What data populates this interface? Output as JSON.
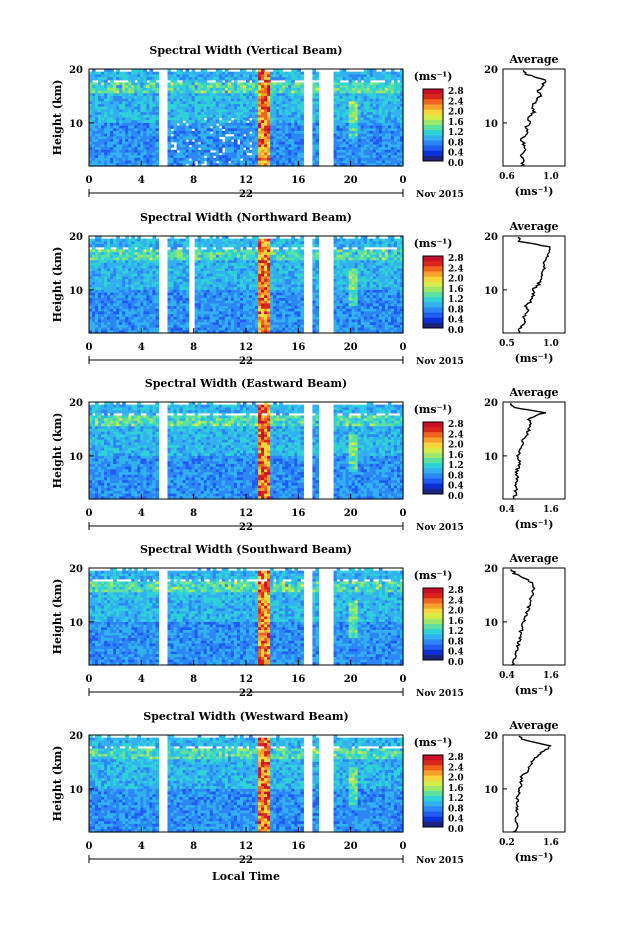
{
  "colors": {
    "scale": [
      "#1a237e",
      "#0d2fd6",
      "#1f5cf2",
      "#2d86f5",
      "#32b0ef",
      "#2fd2d6",
      "#5ee0a0",
      "#9be86a",
      "#d6ec4a",
      "#f6d63a",
      "#f7a12c",
      "#f0641f",
      "#d9261c",
      "#c8102a"
    ],
    "no_data": "#ffffff",
    "line": "#000000"
  },
  "shared": {
    "x_ticks": [
      "0",
      "4",
      "8",
      "12",
      "16",
      "20",
      "0"
    ],
    "date_label": "22",
    "month_label": "Nov 2015",
    "unit_label": "(ms⁻¹)",
    "ylabel": "Height (km)",
    "y_ticks": [
      "20",
      "10"
    ],
    "colorbar_ticks": [
      "2.8",
      "2.4",
      "2.0",
      "1.6",
      "1.2",
      "0.8",
      "0.4",
      "0.0"
    ],
    "avg_title": "Average",
    "avg_xlabel": "(ms⁻¹)",
    "xlabel": "Local Time"
  },
  "chart_data": [
    {
      "type": "heatmap",
      "title": "Spectral Width (Vertical Beam)",
      "xlabel": "",
      "ylabel": "Height (km)",
      "xlim": [
        0,
        24
      ],
      "ylim": [
        2,
        20
      ],
      "color_range": [
        0.0,
        2.8
      ],
      "no_data_hours": [
        [
          5.4,
          6.0
        ],
        [
          16.4,
          17.0
        ],
        [
          17.6,
          18.8
        ]
      ],
      "enhanced_band_hours": [
        13.0,
        13.9
      ],
      "average_profile": {
        "xlim": [
          0.6,
          1.2
        ],
        "xticks": [
          "0.6",
          "1.0"
        ],
        "height_km": [
          2,
          3,
          4,
          5,
          6,
          7,
          8,
          9,
          10,
          11,
          12,
          13,
          14,
          15,
          16,
          17,
          18,
          19,
          20
        ],
        "width": [
          0.78,
          0.8,
          0.76,
          0.82,
          0.8,
          0.78,
          0.84,
          0.82,
          0.86,
          0.84,
          0.9,
          0.88,
          0.92,
          0.96,
          0.94,
          0.98,
          1.02,
          0.82,
          0.8
        ]
      }
    },
    {
      "type": "heatmap",
      "title": "Spectral Width (Northward Beam)",
      "xlabel": "",
      "ylabel": "Height (km)",
      "xlim": [
        0,
        24
      ],
      "ylim": [
        2,
        20
      ],
      "color_range": [
        0.0,
        2.8
      ],
      "no_data_hours": [
        [
          5.4,
          6.0
        ],
        [
          7.6,
          8.0
        ],
        [
          16.4,
          17.0
        ],
        [
          17.6,
          18.8
        ]
      ],
      "enhanced_band_hours": [
        13.0,
        13.9
      ],
      "average_profile": {
        "xlim": [
          0.4,
          1.2
        ],
        "xticks": [
          "0.5",
          "1.0"
        ],
        "height_km": [
          2,
          3,
          4,
          5,
          6,
          7,
          8,
          9,
          10,
          11,
          12,
          13,
          14,
          15,
          16,
          17,
          18,
          19,
          20
        ],
        "width": [
          0.6,
          0.62,
          0.7,
          0.66,
          0.72,
          0.7,
          0.76,
          0.8,
          0.78,
          0.86,
          0.88,
          0.9,
          0.94,
          0.92,
          0.96,
          0.98,
          1.0,
          0.62,
          0.58
        ]
      }
    },
    {
      "type": "heatmap",
      "title": "Spectral Width (Eastward Beam)",
      "xlabel": "",
      "ylabel": "Height (km)",
      "xlim": [
        0,
        24
      ],
      "ylim": [
        2,
        20
      ],
      "color_range": [
        0.0,
        2.8
      ],
      "no_data_hours": [
        [
          5.4,
          6.0
        ],
        [
          16.4,
          17.0
        ],
        [
          17.6,
          18.8
        ]
      ],
      "enhanced_band_hours": [
        13.0,
        13.9
      ],
      "average_profile": {
        "xlim": [
          0.4,
          1.6
        ],
        "xticks": [
          "0.4",
          "1.6"
        ],
        "height_km": [
          2,
          3,
          4,
          5,
          6,
          7,
          8,
          9,
          10,
          11,
          12,
          13,
          14,
          15,
          16,
          17,
          18,
          19,
          20
        ],
        "width": [
          0.62,
          0.64,
          0.66,
          0.64,
          0.68,
          0.66,
          0.7,
          0.72,
          0.7,
          0.74,
          0.76,
          0.8,
          0.86,
          0.9,
          0.94,
          0.9,
          1.2,
          0.6,
          0.52
        ]
      }
    },
    {
      "type": "heatmap",
      "title": "Spectral Width (Southward Beam)",
      "xlabel": "",
      "ylabel": "Height (km)",
      "xlim": [
        0,
        24
      ],
      "ylim": [
        2,
        20
      ],
      "color_range": [
        0.0,
        2.8
      ],
      "no_data_hours": [
        [
          5.4,
          6.0
        ],
        [
          16.4,
          17.0
        ],
        [
          17.6,
          18.8
        ]
      ],
      "enhanced_band_hours": [
        13.0,
        13.9
      ],
      "average_profile": {
        "xlim": [
          0.4,
          1.6
        ],
        "xticks": [
          "0.4",
          "1.6"
        ],
        "height_km": [
          2,
          3,
          4,
          5,
          6,
          7,
          8,
          9,
          10,
          11,
          12,
          13,
          14,
          15,
          16,
          17,
          18,
          19,
          20
        ],
        "width": [
          0.58,
          0.6,
          0.64,
          0.66,
          0.7,
          0.72,
          0.74,
          0.78,
          0.8,
          0.84,
          0.88,
          0.9,
          0.94,
          0.96,
          1.0,
          0.98,
          0.84,
          0.62,
          0.56
        ]
      }
    },
    {
      "type": "heatmap",
      "title": "Spectral Width (Westward Beam)",
      "xlabel": "Local Time",
      "ylabel": "Height (km)",
      "xlim": [
        0,
        24
      ],
      "ylim": [
        2,
        20
      ],
      "color_range": [
        0.0,
        2.8
      ],
      "no_data_hours": [
        [
          5.4,
          6.0
        ],
        [
          16.4,
          17.0
        ],
        [
          17.6,
          18.8
        ]
      ],
      "enhanced_band_hours": [
        13.0,
        13.9
      ],
      "average_profile": {
        "xlim": [
          0.2,
          1.6
        ],
        "xticks": [
          "0.2",
          "1.6"
        ],
        "height_km": [
          2,
          3,
          4,
          5,
          6,
          7,
          8,
          9,
          10,
          11,
          12,
          13,
          14,
          15,
          16,
          17,
          18,
          19,
          20
        ],
        "width": [
          0.46,
          0.5,
          0.48,
          0.52,
          0.5,
          0.54,
          0.52,
          0.56,
          0.58,
          0.62,
          0.6,
          0.72,
          0.8,
          0.86,
          0.96,
          1.1,
          1.3,
          0.7,
          0.5
        ]
      }
    }
  ]
}
